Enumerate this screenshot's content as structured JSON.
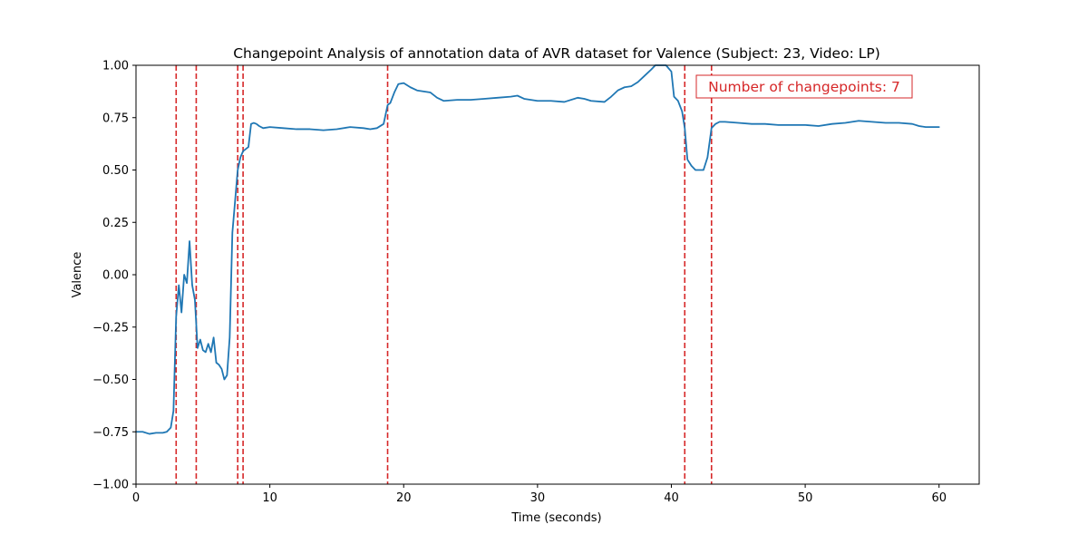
{
  "chart_data": {
    "type": "line",
    "title": "Changepoint Analysis of annotation data of AVR dataset for Valence (Subject: 23, Video: LP)",
    "xlabel": "Time (seconds)",
    "ylabel": "Valence",
    "xlim": [
      0,
      63
    ],
    "ylim": [
      -1.0,
      1.0
    ],
    "xticks": [
      0,
      10,
      20,
      30,
      40,
      50,
      60
    ],
    "xtick_labels": [
      "0",
      "10",
      "20",
      "30",
      "40",
      "50",
      "60"
    ],
    "yticks": [
      -1.0,
      -0.75,
      -0.5,
      -0.25,
      0.0,
      0.25,
      0.5,
      0.75,
      1.0
    ],
    "ytick_labels": [
      "−1.00",
      "−0.75",
      "−0.50",
      "−0.25",
      "0.00",
      "0.25",
      "0.50",
      "0.75",
      "1.00"
    ],
    "grid": false,
    "series": [
      {
        "color": "#1f77b4",
        "x": [
          0,
          0.5,
          1,
          1.5,
          2,
          2.3,
          2.6,
          2.8,
          3.0,
          3.2,
          3.4,
          3.6,
          3.8,
          4.0,
          4.2,
          4.4,
          4.6,
          4.8,
          5.0,
          5.2,
          5.4,
          5.6,
          5.8,
          6.0,
          6.2,
          6.4,
          6.6,
          6.8,
          7.0,
          7.2,
          7.4,
          7.6,
          7.8,
          8.0,
          8.2,
          8.4,
          8.6,
          8.8,
          9.0,
          9.2,
          9.5,
          10,
          11,
          12,
          13,
          14,
          15,
          16,
          17,
          17.5,
          18,
          18.5,
          18.8,
          19.0,
          19.3,
          19.6,
          20.0,
          20.5,
          21,
          22,
          22.5,
          23,
          24,
          25,
          26,
          27,
          28,
          28.5,
          29,
          30,
          31,
          32,
          33,
          33.5,
          34,
          35,
          35.5,
          36,
          36.5,
          37,
          37.5,
          38,
          38.5,
          38.8,
          39.2,
          39.6,
          40.0,
          40.2,
          40.5,
          40.8,
          41.0,
          41.2,
          41.5,
          41.8,
          42.1,
          42.4,
          42.7,
          43.0,
          43.3,
          43.6,
          44,
          45,
          46,
          47,
          48,
          49,
          50,
          51,
          52,
          53,
          53.5,
          54,
          55,
          56,
          57,
          58,
          58.5,
          59,
          60
        ],
        "y": [
          -0.75,
          -0.75,
          -0.76,
          -0.755,
          -0.755,
          -0.75,
          -0.73,
          -0.65,
          -0.2,
          -0.05,
          -0.18,
          0.0,
          -0.04,
          0.16,
          -0.05,
          -0.12,
          -0.35,
          -0.31,
          -0.36,
          -0.37,
          -0.33,
          -0.37,
          -0.3,
          -0.42,
          -0.43,
          -0.45,
          -0.5,
          -0.48,
          -0.3,
          0.2,
          0.35,
          0.5,
          0.56,
          0.59,
          0.6,
          0.61,
          0.72,
          0.725,
          0.72,
          0.71,
          0.7,
          0.705,
          0.7,
          0.695,
          0.695,
          0.69,
          0.695,
          0.705,
          0.7,
          0.695,
          0.7,
          0.72,
          0.81,
          0.82,
          0.87,
          0.91,
          0.915,
          0.895,
          0.88,
          0.87,
          0.845,
          0.83,
          0.835,
          0.835,
          0.84,
          0.845,
          0.85,
          0.855,
          0.84,
          0.83,
          0.83,
          0.825,
          0.845,
          0.84,
          0.83,
          0.825,
          0.85,
          0.88,
          0.895,
          0.9,
          0.92,
          0.95,
          0.98,
          1.0,
          1.0,
          1.0,
          0.97,
          0.85,
          0.83,
          0.78,
          0.7,
          0.55,
          0.52,
          0.5,
          0.5,
          0.5,
          0.56,
          0.7,
          0.72,
          0.73,
          0.73,
          0.725,
          0.72,
          0.72,
          0.715,
          0.715,
          0.715,
          0.71,
          0.72,
          0.725,
          0.73,
          0.735,
          0.73,
          0.725,
          0.725,
          0.72,
          0.71,
          0.705,
          0.705
        ]
      }
    ],
    "changepoints": [
      3.0,
      4.5,
      7.6,
      8.0,
      18.8,
      41.0,
      43.0
    ],
    "changepoint_color": "#d62728",
    "annotation": {
      "text": "Number of changepoints: 7",
      "color": "#d62728",
      "placement": "top-right"
    }
  }
}
